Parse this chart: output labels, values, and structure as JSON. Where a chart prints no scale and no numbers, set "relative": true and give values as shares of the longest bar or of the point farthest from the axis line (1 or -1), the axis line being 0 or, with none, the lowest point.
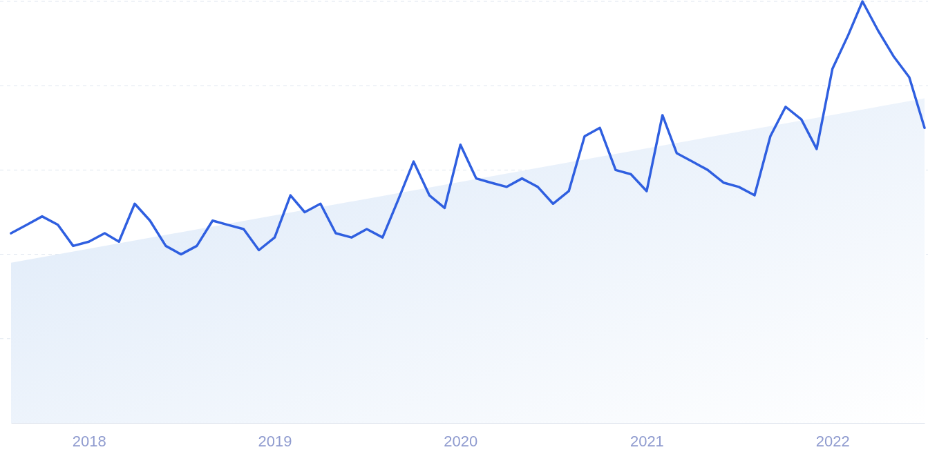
{
  "chart_data": {
    "type": "line",
    "relative": true,
    "grid": "y",
    "xlim": [
      "2017-08",
      "2022-07"
    ],
    "xticks": [
      {
        "value": "2018-01",
        "label": "2018"
      },
      {
        "value": "2019-01",
        "label": "2019"
      },
      {
        "value": "2020-01",
        "label": "2020"
      },
      {
        "value": "2021-01",
        "label": "2021"
      },
      {
        "value": "2022-01",
        "label": "2022"
      }
    ],
    "series": [
      {
        "type": "area",
        "color": "#dbe8f8",
        "x": [
          "2017-08",
          "2022-07"
        ],
        "values": [
          0.38,
          0.77
        ]
      },
      {
        "color": "#2f5fe0",
        "x": [
          "2017-08",
          "2017-09",
          "2017-10",
          "2017-11",
          "2017-12",
          "2018-01",
          "2018-02",
          "2018-03",
          "2018-04",
          "2018-05",
          "2018-06",
          "2018-07",
          "2018-08",
          "2018-09",
          "2018-10",
          "2018-11",
          "2018-12",
          "2019-01",
          "2019-02",
          "2019-03",
          "2019-04",
          "2019-05",
          "2019-06",
          "2019-07",
          "2019-08",
          "2019-09",
          "2019-10",
          "2019-11",
          "2019-12",
          "2020-01",
          "2020-02",
          "2020-03",
          "2020-04",
          "2020-05",
          "2020-06",
          "2020-07",
          "2020-08",
          "2020-09",
          "2020-10",
          "2020-11",
          "2020-12",
          "2021-01",
          "2021-02",
          "2021-03",
          "2021-04",
          "2021-05",
          "2021-06",
          "2021-07",
          "2021-08",
          "2021-09",
          "2021-10",
          "2021-11",
          "2021-12",
          "2022-01",
          "2022-02",
          "2022-03",
          "2022-04",
          "2022-05",
          "2022-06",
          "2022-07"
        ],
        "values": [
          0.45,
          0.47,
          0.49,
          0.47,
          0.42,
          0.43,
          0.45,
          0.43,
          0.52,
          0.48,
          0.42,
          0.4,
          0.42,
          0.48,
          0.47,
          0.46,
          0.41,
          0.44,
          0.54,
          0.5,
          0.52,
          0.45,
          0.44,
          0.46,
          0.44,
          0.53,
          0.62,
          0.54,
          0.51,
          0.66,
          0.58,
          0.57,
          0.56,
          0.58,
          0.56,
          0.52,
          0.55,
          0.68,
          0.7,
          0.6,
          0.59,
          0.55,
          0.73,
          0.64,
          0.62,
          0.6,
          0.57,
          0.56,
          0.54,
          0.68,
          0.75,
          0.72,
          0.65,
          0.84,
          0.92,
          1,
          0.93,
          0.87,
          0.82,
          0.7
        ]
      }
    ]
  }
}
